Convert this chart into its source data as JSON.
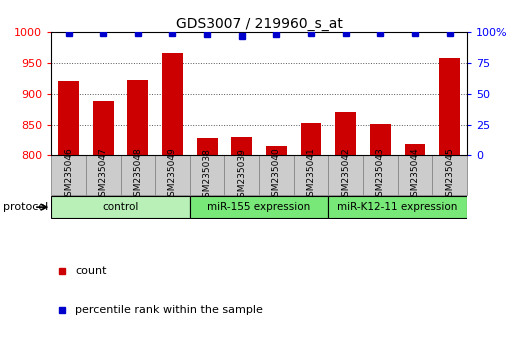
{
  "title": "GDS3007 / 219960_s_at",
  "samples": [
    "GSM235046",
    "GSM235047",
    "GSM235048",
    "GSM235049",
    "GSM235038",
    "GSM235039",
    "GSM235040",
    "GSM235041",
    "GSM235042",
    "GSM235043",
    "GSM235044",
    "GSM235045"
  ],
  "counts": [
    920,
    888,
    922,
    966,
    828,
    830,
    815,
    853,
    870,
    851,
    819,
    958
  ],
  "percentile_ranks": [
    99,
    99,
    99,
    99,
    98,
    97,
    98,
    99,
    99,
    99,
    99,
    99
  ],
  "groups": [
    {
      "label": "control",
      "start": 0,
      "end": 4,
      "color": "#b8f0b8"
    },
    {
      "label": "miR-155 expression",
      "start": 4,
      "end": 8,
      "color": "#78e878"
    },
    {
      "label": "miR-K12-11 expression",
      "start": 8,
      "end": 12,
      "color": "#78e878"
    }
  ],
  "bar_color": "#cc0000",
  "dot_color": "#0000cc",
  "ylim_left": [
    800,
    1000
  ],
  "ylim_right": [
    0,
    100
  ],
  "yticks_left": [
    800,
    850,
    900,
    950,
    1000
  ],
  "yticks_right": [
    0,
    25,
    50,
    75,
    100
  ],
  "ytick_labels_right": [
    "0",
    "25",
    "50",
    "75",
    "100%"
  ],
  "grid_color": "#555555",
  "bg_color": "#ffffff",
  "protocol_label": "protocol",
  "legend_count_label": "count",
  "legend_percentile_label": "percentile rank within the sample",
  "sample_box_color": "#cccccc",
  "sample_box_edge": "#888888"
}
